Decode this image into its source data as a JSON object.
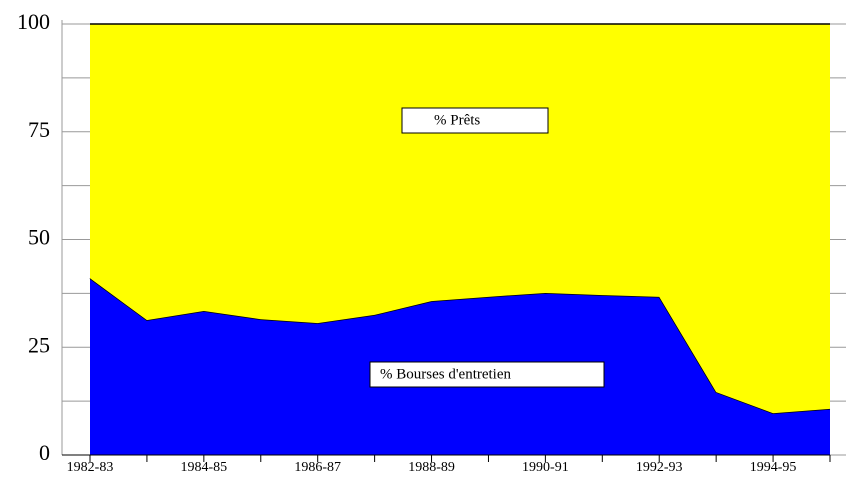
{
  "chart_data": {
    "type": "stacked_area",
    "categories": [
      "1982-83",
      null,
      "1984-85",
      null,
      "1986-87",
      null,
      "1988-89",
      null,
      "1990-91",
      null,
      "1992-93",
      null,
      "1994-95",
      null
    ],
    "series": [
      {
        "name": "% Bourses d'entretien",
        "color": "#0000ff",
        "values": [
          41,
          31.3,
          33.4,
          31.5,
          30.6,
          32.5,
          35.7,
          36.7,
          37.6,
          37.1,
          36.7,
          14.6,
          9.7,
          10.7
        ]
      },
      {
        "name": "% Prêts",
        "color": "#ffff00",
        "values": [
          59,
          68.7,
          66.6,
          68.5,
          69.4,
          67.5,
          64.3,
          63.3,
          62.4,
          62.9,
          63.3,
          85.4,
          90.3,
          89.3
        ]
      }
    ],
    "ylim": [
      0,
      100
    ],
    "yticks": [
      0,
      25,
      50,
      75,
      100
    ],
    "yminor_ticks": [
      12.5,
      37.5,
      62.5,
      87.5
    ],
    "grid": true
  }
}
